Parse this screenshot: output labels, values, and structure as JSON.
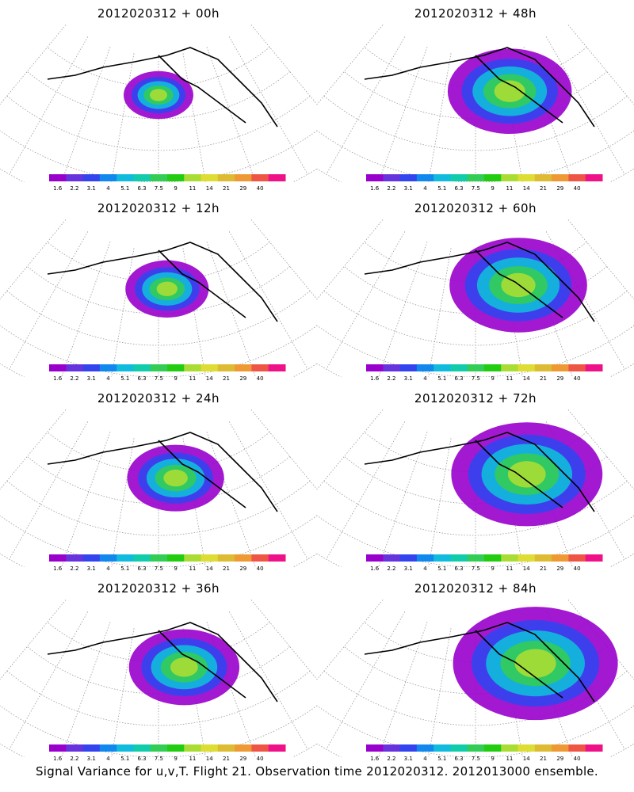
{
  "panels": [
    {
      "title": "2012020312 + 00h",
      "lead_hours": 0
    },
    {
      "title": "2012020312 + 48h",
      "lead_hours": 48
    },
    {
      "title": "2012020312 + 12h",
      "lead_hours": 12
    },
    {
      "title": "2012020312 + 60h",
      "lead_hours": 60
    },
    {
      "title": "2012020312 + 24h",
      "lead_hours": 24
    },
    {
      "title": "2012020312 + 72h",
      "lead_hours": 72
    },
    {
      "title": "2012020312 + 36h",
      "lead_hours": 36
    },
    {
      "title": "2012020312 + 84h",
      "lead_hours": 84
    }
  ],
  "colorbar": {
    "levels": [
      "1.6",
      "2.2",
      "3.1",
      "4",
      "5.1",
      "6.3",
      "7.5",
      "9",
      "11",
      "14",
      "21",
      "29",
      "40"
    ],
    "colors": [
      "#9900cc",
      "#6633dd",
      "#3344ee",
      "#1188ee",
      "#11bbdd",
      "#11ccaa",
      "#33cc55",
      "#22cc11",
      "#aadd33",
      "#dddd33",
      "#ddbb33",
      "#ee9933",
      "#ee5544",
      "#ee1188"
    ]
  },
  "footer": "Signal Variance for u,v,T. Flight 21. Observation time 2012020312. 2012013000 ensemble."
}
